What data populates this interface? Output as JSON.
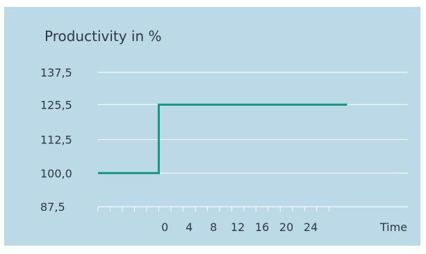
{
  "chart_data": {
    "type": "line",
    "title": "Productivity in %",
    "xlabel": "Time",
    "ylabel": "",
    "x_ticks": [
      0,
      4,
      8,
      12,
      16,
      20,
      24
    ],
    "x_ticks_labeled": [
      "0",
      "4",
      "8",
      "12",
      "16",
      "20",
      "24"
    ],
    "y_ticks": [
      "137,5",
      "125,5",
      "112,5",
      "100,0",
      "87,5"
    ],
    "xlim": [
      -11,
      40
    ],
    "ylim": [
      87.5,
      137.5
    ],
    "series": [
      {
        "x": [
          -11,
          -1,
          -1,
          30
        ],
        "y": [
          100,
          100,
          125.5,
          125.5
        ]
      }
    ],
    "grid": true,
    "colors": {
      "background": "#bcd9e8",
      "line": "#0f9a82",
      "grid": "#ffffff",
      "text": "#2d3840"
    }
  }
}
